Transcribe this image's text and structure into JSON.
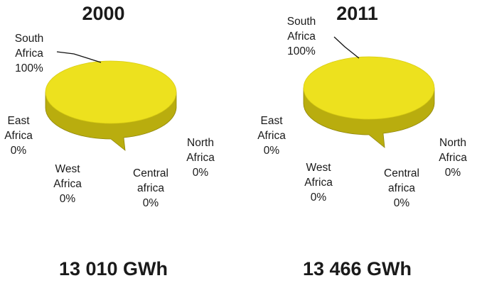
{
  "chart_data": [
    {
      "type": "pie",
      "title": "2000",
      "total": "13 010 GWh",
      "slices": [
        {
          "name_lines": [
            "South",
            "Africa"
          ],
          "value": 100,
          "label": "100%",
          "color": "#ede11e"
        },
        {
          "name_lines": [
            "East",
            "Africa"
          ],
          "value": 0,
          "label": "0%"
        },
        {
          "name_lines": [
            "West",
            "Africa"
          ],
          "value": 0,
          "label": "0%"
        },
        {
          "name_lines": [
            "Central",
            "africa"
          ],
          "value": 0,
          "label": "0%"
        },
        {
          "name_lines": [
            "North",
            "Africa"
          ],
          "value": 0,
          "label": "0%"
        }
      ]
    },
    {
      "type": "pie",
      "title": "2011",
      "total": "13 466 GWh",
      "slices": [
        {
          "name_lines": [
            "South",
            "Africa"
          ],
          "value": 100,
          "label": "100%",
          "color": "#ede11e"
        },
        {
          "name_lines": [
            "East",
            "Africa"
          ],
          "value": 0,
          "label": "0%"
        },
        {
          "name_lines": [
            "West",
            "Africa"
          ],
          "value": 0,
          "label": "0%"
        },
        {
          "name_lines": [
            "Central",
            "africa"
          ],
          "value": 0,
          "label": "0%"
        },
        {
          "name_lines": [
            "North",
            "Africa"
          ],
          "value": 0,
          "label": "0%"
        }
      ]
    }
  ],
  "colors": {
    "pie_top": "#ede11e",
    "pie_side": "#b9ad0e",
    "pie_side_dark": "#8f850a",
    "text": "#1a1a1a"
  }
}
